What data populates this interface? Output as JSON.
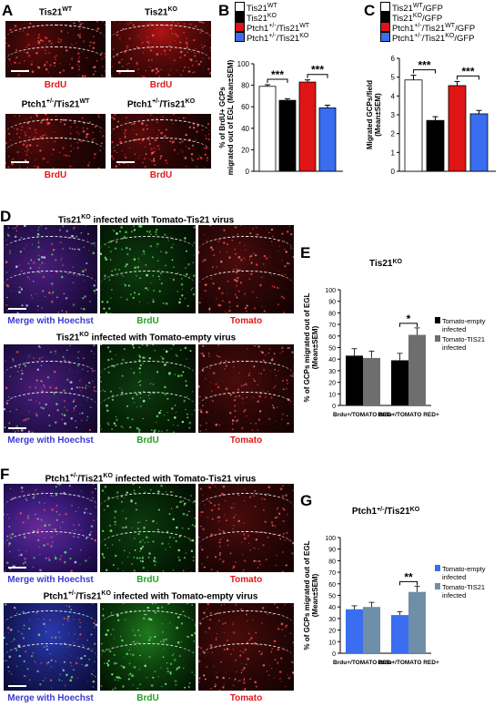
{
  "panels": {
    "a": {
      "letter": "A",
      "images": [
        {
          "title": "Tis21",
          "sup": "WT",
          "label": "BrdU"
        },
        {
          "title": "Tis21",
          "sup": "KO",
          "label": "BrdU"
        },
        {
          "title": "Ptch1",
          "sup1": "+/-",
          "mid": "/Tis21",
          "sup": "WT",
          "label": "BrdU"
        },
        {
          "title": "Ptch1",
          "sup1": "+/-",
          "mid": "/Tis21",
          "sup": "KO",
          "label": "BrdU"
        }
      ]
    },
    "b": {
      "letter": "B"
    },
    "c": {
      "letter": "C"
    },
    "d": {
      "letter": "D",
      "row1_title_pre": "Tis21",
      "row1_title_sup": "KO",
      "row1_title_post": " infected with Tomato-Tis21 virus",
      "row2_title_pre": "Tis21",
      "row2_title_sup": "KO",
      "row2_title_post": " infected with Tomato-empty virus",
      "labels": [
        "Merge with Hoechst",
        "BrdU",
        "Tomato"
      ]
    },
    "e": {
      "letter": "E"
    },
    "f": {
      "letter": "F",
      "row1_title_pre": "Ptch1",
      "row1_title_sup1": "+/-",
      "row1_title_mid": "/Tis21",
      "row1_title_sup": "KO",
      "row1_title_post": " infected with Tomato-Tis21 virus",
      "row2_title_pre": "Ptch1",
      "row2_title_sup1": "+/-",
      "row2_title_mid": "/Tis21",
      "row2_title_sup": "KO",
      "row2_title_post": " infected with Tomato-empty virus",
      "labels": [
        "Merge with Hoechst",
        "BrdU",
        "Tomato"
      ]
    },
    "g": {
      "letter": "G"
    }
  },
  "chart_data": [
    {
      "id": "B",
      "type": "bar",
      "ylabel": "% of BrdU+ GCPs migrated out of EGL (Mean±SEM)",
      "ylim": [
        0,
        100
      ],
      "yticks": [
        0,
        20,
        40,
        60,
        80,
        100
      ],
      "legend": [
        {
          "pre": "Tis21",
          "sup": "WT",
          "color": "#ffffff"
        },
        {
          "pre": "Tis21",
          "sup": "KO",
          "color": "#000000"
        },
        {
          "pre": "Ptch1",
          "sup1": "+/-",
          "mid": "/Tis21",
          "sup": "WT",
          "color": "#e01414"
        },
        {
          "pre": "Ptch1",
          "sup1": "+/-",
          "mid": "/Tis21",
          "sup": "KO",
          "color": "#3a6df0"
        }
      ],
      "values": [
        79,
        66,
        83,
        59
      ],
      "errors": [
        1.5,
        1.5,
        2.0,
        2.5
      ],
      "colors": [
        "#ffffff",
        "#000000",
        "#e01414",
        "#3a6df0"
      ],
      "significance": [
        {
          "from": 0,
          "to": 1,
          "label": "***"
        },
        {
          "from": 2,
          "to": 3,
          "label": "***"
        }
      ]
    },
    {
      "id": "C",
      "type": "bar",
      "ylabel": "Migrated GCPs/field (Mean±SEM)",
      "ylim": [
        0,
        6
      ],
      "yticks": [
        0,
        1,
        2,
        3,
        4,
        5,
        6
      ],
      "legend": [
        {
          "pre": "Tis21",
          "sup": "WT",
          "post": "/GFP",
          "color": "#ffffff"
        },
        {
          "pre": "Tis21",
          "sup": "KO",
          "post": "/GFP",
          "color": "#000000"
        },
        {
          "pre": "Ptch1",
          "sup1": "+/-",
          "mid": "/Tis21",
          "sup": "WT",
          "post": "/GFP",
          "color": "#e01414"
        },
        {
          "pre": "Ptch1",
          "sup1": "+/-",
          "mid": "/Tis21",
          "sup": "KO",
          "post": "/GFP",
          "color": "#3a6df0"
        }
      ],
      "values": [
        4.85,
        2.7,
        4.55,
        3.05
      ],
      "errors": [
        0.25,
        0.2,
        0.22,
        0.18
      ],
      "colors": [
        "#ffffff",
        "#000000",
        "#e01414",
        "#3a6df0"
      ],
      "significance": [
        {
          "from": 0,
          "to": 1,
          "label": "***"
        },
        {
          "from": 2,
          "to": 3,
          "label": "***"
        }
      ]
    },
    {
      "id": "E",
      "type": "bar",
      "title_pre": "Tis21",
      "title_sup": "KO",
      "ylabel": "% of GCPs migrated out of EGL (Mean±SEM)",
      "ylim": [
        0,
        100
      ],
      "yticks": [
        0,
        10,
        20,
        30,
        40,
        50,
        60,
        70,
        80,
        90,
        100
      ],
      "categories": [
        "Brdu+/TOMATO RED-",
        "Brdu+/TOMATO RED+"
      ],
      "series": [
        {
          "name": "Tomato-empty infected",
          "color": "#000000",
          "values": [
            43,
            39
          ],
          "errors": [
            6,
            6
          ]
        },
        {
          "name": "Tomato-TIS21 infected",
          "color": "#6e6e6e",
          "values": [
            41,
            61
          ],
          "errors": [
            6,
            6
          ]
        }
      ],
      "significance": [
        {
          "category": 1,
          "label": "*"
        }
      ]
    },
    {
      "id": "G",
      "type": "bar",
      "title_pre": "Ptch1",
      "title_sup1": "+/-",
      "title_mid": "/Tis21",
      "title_sup": "KO",
      "ylabel": "% of GCPs migrated out of EGL (Mean±SEM)",
      "ylim": [
        0,
        100
      ],
      "yticks": [
        0,
        10,
        20,
        30,
        40,
        50,
        60,
        70,
        80,
        90,
        100
      ],
      "categories": [
        "Brdu+/TOMATO RED-",
        "Brdu+/TOMATO RED+"
      ],
      "series": [
        {
          "name": "Tomato-empty infected",
          "color": "#3a6df0",
          "values": [
            38,
            33
          ],
          "errors": [
            3,
            3
          ]
        },
        {
          "name": "Tomato-TIS21 infected",
          "color": "#6f8fa8",
          "values": [
            40,
            53
          ],
          "errors": [
            4,
            5
          ]
        }
      ],
      "significance": [
        {
          "category": 1,
          "label": "**"
        }
      ]
    }
  ]
}
